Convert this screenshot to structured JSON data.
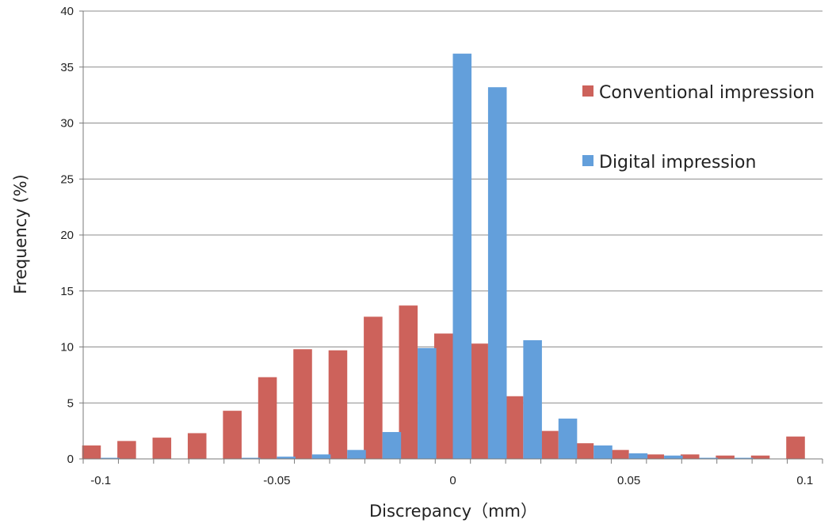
{
  "chart_data": {
    "type": "bar",
    "title": "",
    "xlabel": "Discrepancy（mm）",
    "ylabel": "Frequency (%)",
    "ylim": [
      0,
      40
    ],
    "yticks": [
      "0",
      "5",
      "10",
      "15",
      "20",
      "25",
      "30",
      "35",
      "40"
    ],
    "xtick_labels": [
      "-0.1",
      "-0.05",
      "0",
      "0.05",
      "0.1"
    ],
    "xtick_values": [
      -0.1,
      -0.05,
      0,
      0.05,
      0.1
    ],
    "xlim": [
      -0.105,
      0.105
    ],
    "x": [
      -0.1,
      -0.09,
      -0.08,
      -0.07,
      -0.06,
      -0.05,
      -0.04,
      -0.03,
      -0.02,
      -0.01,
      0,
      0.01,
      0.02,
      0.03,
      0.04,
      0.05,
      0.06,
      0.07,
      0.08,
      0.09,
      0.1
    ],
    "grid": true,
    "legend_position": "top-right",
    "series": [
      {
        "name": "Conventional impression",
        "color": "#CD625B",
        "values": [
          1.2,
          1.6,
          1.9,
          2.3,
          4.3,
          7.3,
          9.8,
          9.7,
          12.7,
          13.7,
          11.2,
          10.3,
          5.6,
          2.5,
          1.4,
          0.8,
          0.4,
          0.4,
          0.3,
          0.3,
          2.0
        ]
      },
      {
        "name": "Digital impression",
        "color": "#639FDB",
        "values": [
          0.1,
          0,
          0,
          0,
          0.1,
          0.2,
          0.4,
          0.8,
          2.4,
          9.9,
          36.2,
          33.2,
          10.6,
          3.6,
          1.2,
          0.5,
          0.3,
          0.1,
          0.1,
          0,
          0
        ]
      }
    ]
  }
}
